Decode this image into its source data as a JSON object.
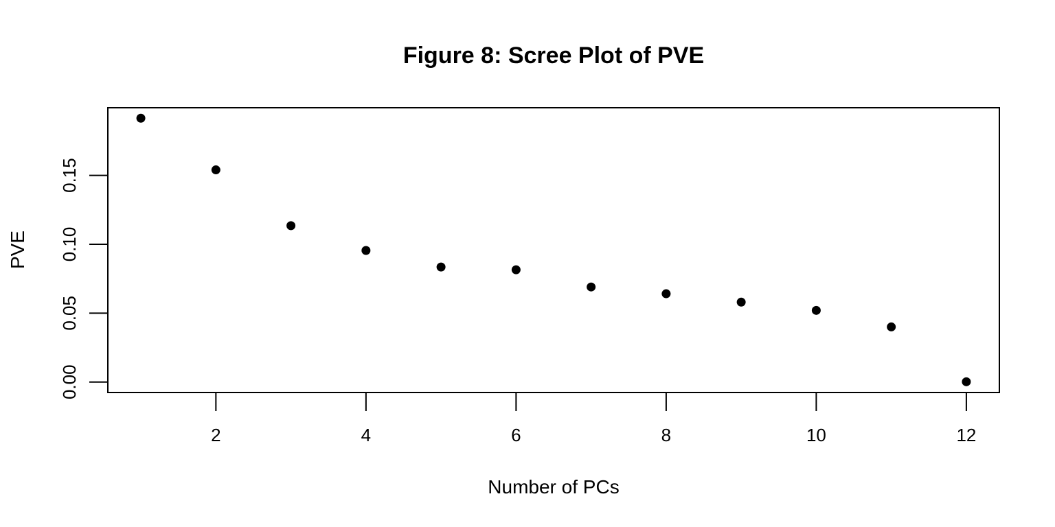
{
  "chart_data": {
    "type": "scatter",
    "title": "Figure 8: Scree Plot of PVE",
    "xlabel": "Number of PCs",
    "ylabel": "PVE",
    "xlim": [
      0.56,
      12.44
    ],
    "ylim": [
      -0.0076,
      0.1991
    ],
    "x_ticks": [
      2,
      4,
      6,
      8,
      10,
      12
    ],
    "x_tick_labels": [
      "2",
      "4",
      "6",
      "8",
      "10",
      "12"
    ],
    "y_ticks": [
      0.0,
      0.05,
      0.1,
      0.15
    ],
    "y_tick_labels": [
      "0.00",
      "0.05",
      "0.10",
      "0.15"
    ],
    "grid": false,
    "series": [
      {
        "x": [
          1,
          2,
          3,
          4,
          5,
          6,
          7,
          8,
          9,
          10,
          11,
          12
        ],
        "values": [
          0.1915,
          0.154,
          0.1135,
          0.0955,
          0.0835,
          0.0815,
          0.069,
          0.0641,
          0.058,
          0.052,
          0.04,
          0.0002
        ]
      }
    ],
    "marker_color": "#000000"
  }
}
